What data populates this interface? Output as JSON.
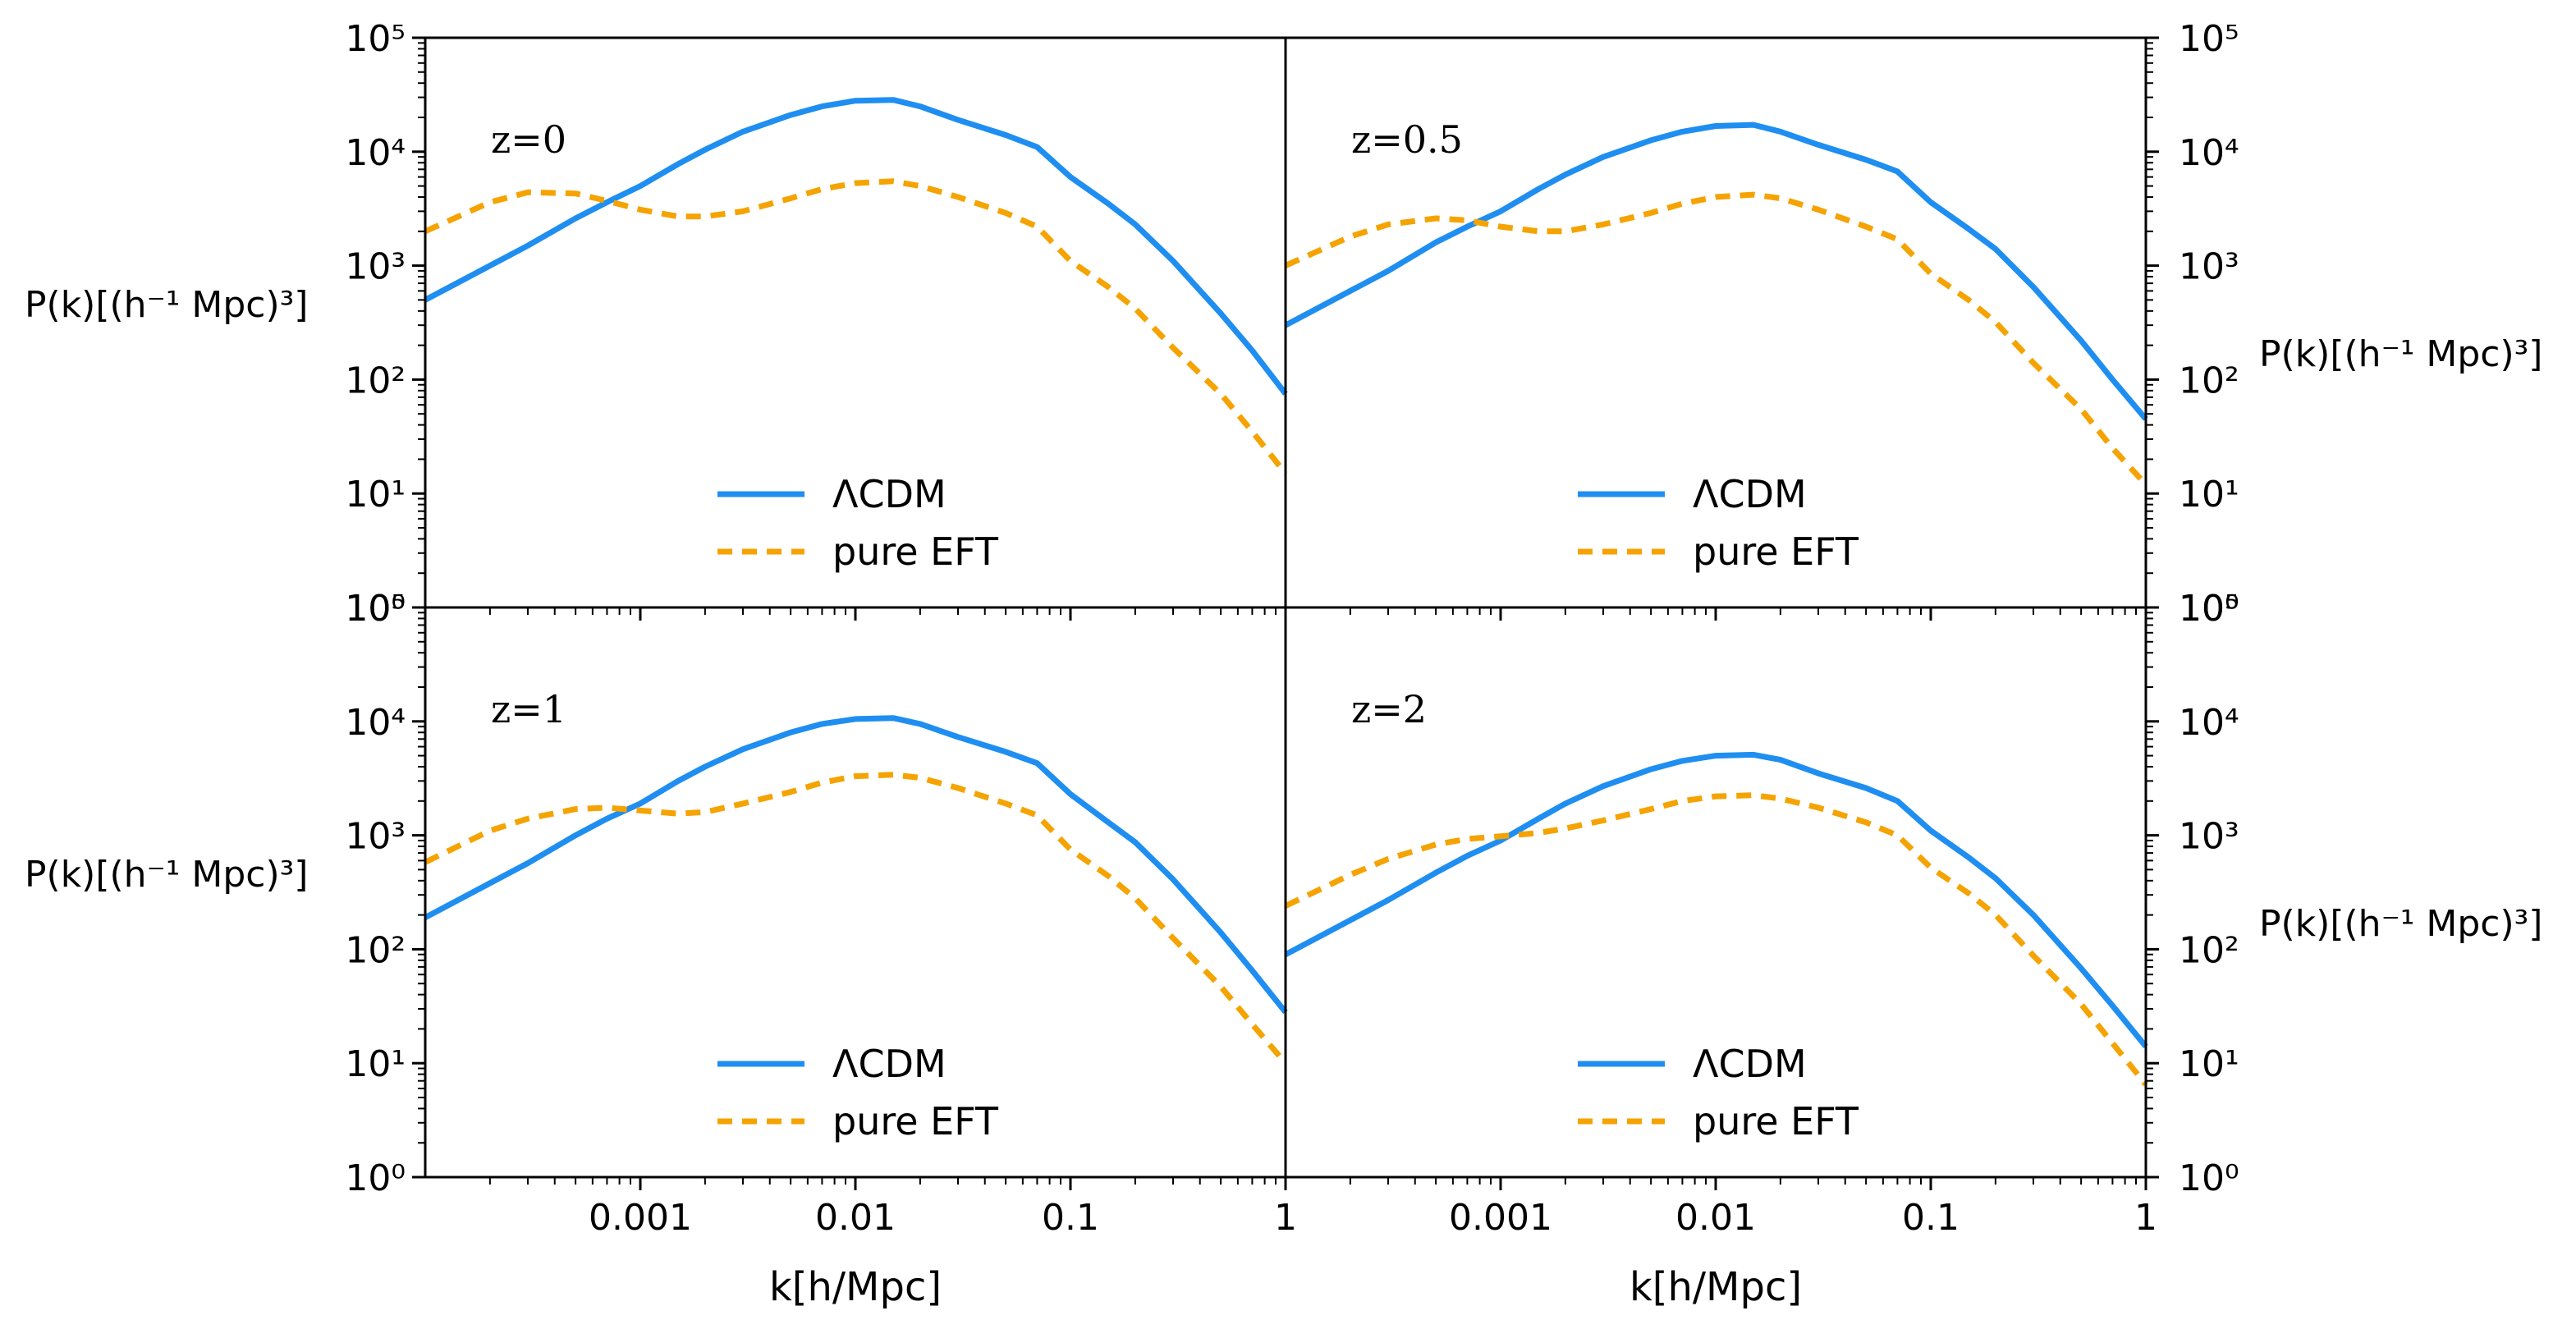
{
  "figure": {
    "ylabel": "P(k)[(h⁻¹ Mpc)³]",
    "xlabel": "k[h/Mpc]",
    "x_tick_labels": [
      "0.001",
      "0.01",
      "0.1",
      "1"
    ],
    "first_x_tick_label_right_panel": "1",
    "y_tick_labels": [
      "10⁰",
      "10¹",
      "10²",
      "10³",
      "10⁴",
      "10⁵"
    ],
    "colors": {
      "lcdm": "#1f8ef1",
      "eft": "#f5a300"
    }
  },
  "chart_data": [
    {
      "type": "line",
      "label": "z=0",
      "x_scale": "log",
      "y_scale": "log",
      "xlim": [
        0.0001,
        1
      ],
      "ylim": [
        1,
        100000
      ],
      "x": [
        0.0001,
        0.0002,
        0.0003,
        0.0005,
        0.0007,
        0.001,
        0.0015,
        0.002,
        0.003,
        0.005,
        0.007,
        0.01,
        0.015,
        0.02,
        0.03,
        0.05,
        0.07,
        0.1,
        0.15,
        0.2,
        0.3,
        0.5,
        0.7,
        1
      ],
      "series": [
        {
          "name": "ΛCDM",
          "values": [
            500,
            1000,
            1500,
            2600,
            3600,
            5000,
            7800,
            10400,
            15000,
            21000,
            25000,
            28000,
            28500,
            25000,
            19000,
            14000,
            11000,
            6000,
            3500,
            2300,
            1100,
            380,
            180,
            75
          ]
        },
        {
          "name": "pure EFT",
          "values": [
            2000,
            3600,
            4400,
            4300,
            3700,
            3100,
            2700,
            2700,
            3000,
            3900,
            4700,
            5300,
            5500,
            5000,
            4000,
            2900,
            2200,
            1100,
            650,
            420,
            190,
            75,
            35,
            15
          ]
        }
      ]
    },
    {
      "type": "line",
      "label": "z=0.5",
      "x_scale": "log",
      "y_scale": "log",
      "xlim": [
        0.0001,
        1
      ],
      "ylim": [
        1,
        100000
      ],
      "x": [
        0.0001,
        0.0002,
        0.0003,
        0.0005,
        0.0007,
        0.001,
        0.0015,
        0.002,
        0.003,
        0.005,
        0.007,
        0.01,
        0.015,
        0.02,
        0.03,
        0.05,
        0.07,
        0.1,
        0.15,
        0.2,
        0.3,
        0.5,
        0.7,
        1
      ],
      "series": [
        {
          "name": "ΛCDM",
          "values": [
            300,
            600,
            900,
            1600,
            2200,
            3000,
            4700,
            6300,
            9000,
            12600,
            15000,
            16800,
            17200,
            15000,
            11500,
            8500,
            6700,
            3600,
            2100,
            1400,
            650,
            220,
            100,
            45
          ]
        },
        {
          "name": "pure EFT",
          "values": [
            1000,
            1800,
            2300,
            2600,
            2500,
            2200,
            2000,
            2000,
            2300,
            2900,
            3500,
            4000,
            4200,
            3900,
            3100,
            2200,
            1700,
            850,
            500,
            320,
            140,
            55,
            25,
            12
          ]
        }
      ]
    },
    {
      "type": "line",
      "label": "z=1",
      "x_scale": "log",
      "y_scale": "log",
      "xlim": [
        0.0001,
        1
      ],
      "ylim": [
        1,
        100000
      ],
      "x": [
        0.0001,
        0.0002,
        0.0003,
        0.0005,
        0.0007,
        0.001,
        0.0015,
        0.002,
        0.003,
        0.005,
        0.007,
        0.01,
        0.015,
        0.02,
        0.03,
        0.05,
        0.07,
        0.1,
        0.15,
        0.2,
        0.3,
        0.5,
        0.7,
        1
      ],
      "series": [
        {
          "name": "ΛCDM",
          "values": [
            190,
            380,
            570,
            1000,
            1400,
            1900,
            3000,
            4000,
            5700,
            8000,
            9500,
            10500,
            10700,
            9500,
            7300,
            5400,
            4300,
            2300,
            1300,
            870,
            410,
            140,
            65,
            28
          ]
        },
        {
          "name": "pure EFT",
          "values": [
            580,
            1100,
            1400,
            1700,
            1750,
            1650,
            1550,
            1600,
            1900,
            2400,
            2900,
            3300,
            3400,
            3200,
            2600,
            1900,
            1500,
            750,
            440,
            280,
            125,
            47,
            22,
            10
          ]
        }
      ]
    },
    {
      "type": "line",
      "label": "z=2",
      "x_scale": "log",
      "y_scale": "log",
      "xlim": [
        0.0001,
        1
      ],
      "ylim": [
        1,
        100000
      ],
      "x": [
        0.0001,
        0.0002,
        0.0003,
        0.0005,
        0.0007,
        0.001,
        0.0015,
        0.002,
        0.003,
        0.005,
        0.007,
        0.01,
        0.015,
        0.02,
        0.03,
        0.05,
        0.07,
        0.1,
        0.15,
        0.2,
        0.3,
        0.5,
        0.7,
        1
      ],
      "series": [
        {
          "name": "ΛCDM",
          "values": [
            90,
            180,
            270,
            470,
            660,
            900,
            1400,
            1900,
            2700,
            3800,
            4500,
            5000,
            5100,
            4600,
            3500,
            2600,
            2000,
            1100,
            640,
            420,
            200,
            68,
            32,
            14
          ]
        },
        {
          "name": "pure EFT",
          "values": [
            240,
            450,
            620,
            830,
            930,
            980,
            1050,
            1150,
            1350,
            1700,
            2000,
            2200,
            2250,
            2100,
            1750,
            1300,
            1000,
            520,
            310,
            200,
            88,
            33,
            15,
            6.5
          ]
        }
      ]
    }
  ]
}
